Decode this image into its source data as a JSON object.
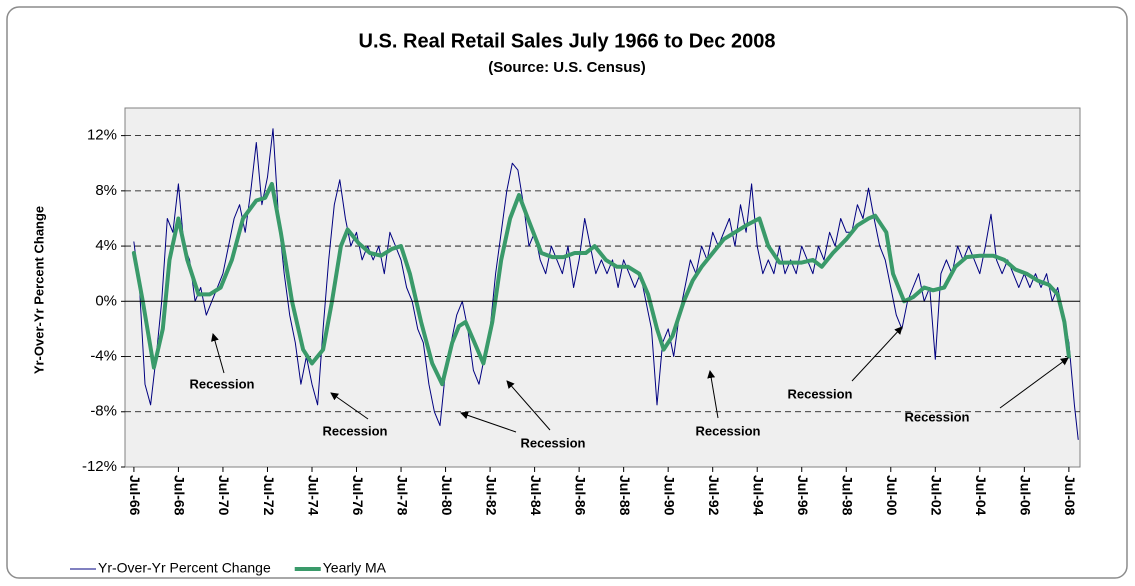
{
  "chart_data": {
    "type": "line",
    "title": "U.S. Real Retail Sales July 1966 to Dec 2008",
    "subtitle": "(Source: U.S. Census)",
    "y_label": "Yr-Over-Yr Percent Change",
    "xlim": [
      1966.1,
      2009.0
    ],
    "ylim": [
      -12,
      14
    ],
    "xticks": [
      {
        "value": 1966.5,
        "label": "Jul-66"
      },
      {
        "value": 1968.5,
        "label": "Jul-68"
      },
      {
        "value": 1970.5,
        "label": "Jul-70"
      },
      {
        "value": 1972.5,
        "label": "Jul-72"
      },
      {
        "value": 1974.5,
        "label": "Jul-74"
      },
      {
        "value": 1976.5,
        "label": "Jul-76"
      },
      {
        "value": 1978.5,
        "label": "Jul-78"
      },
      {
        "value": 1980.5,
        "label": "Jul-80"
      },
      {
        "value": 1982.5,
        "label": "Jul-82"
      },
      {
        "value": 1984.5,
        "label": "Jul-84"
      },
      {
        "value": 1986.5,
        "label": "Jul-86"
      },
      {
        "value": 1988.5,
        "label": "Jul-88"
      },
      {
        "value": 1990.5,
        "label": "Jul-90"
      },
      {
        "value": 1992.5,
        "label": "Jul-92"
      },
      {
        "value": 1994.5,
        "label": "Jul-94"
      },
      {
        "value": 1996.5,
        "label": "Jul-96"
      },
      {
        "value": 1998.5,
        "label": "Jul-98"
      },
      {
        "value": 2000.5,
        "label": "Jul-00"
      },
      {
        "value": 2002.5,
        "label": "Jul-02"
      },
      {
        "value": 2004.5,
        "label": "Jul-04"
      },
      {
        "value": 2006.5,
        "label": "Jul-06"
      },
      {
        "value": 2008.5,
        "label": "Jul-08"
      }
    ],
    "yticks": [
      {
        "value": -12,
        "label": "-12%"
      },
      {
        "value": -8,
        "label": "-8%"
      },
      {
        "value": -4,
        "label": "-4%"
      },
      {
        "value": 0,
        "label": "0%"
      },
      {
        "value": 4,
        "label": "4%"
      },
      {
        "value": 8,
        "label": "8%"
      },
      {
        "value": 12,
        "label": "12%"
      }
    ],
    "grid": true,
    "legend": "bottom",
    "annotations": [
      "Recession",
      "Recession",
      "Recession",
      "Recession",
      "Recession",
      "Recession"
    ],
    "series": [
      {
        "name": "Yr-Over-Yr Percent Change",
        "color": "#000080",
        "width": 1,
        "x": [
          1966.5,
          1966.75,
          1967,
          1967.25,
          1967.5,
          1967.75,
          1968,
          1968.25,
          1968.5,
          1968.75,
          1969,
          1969.25,
          1969.5,
          1969.75,
          1970,
          1970.25,
          1970.5,
          1970.75,
          1971,
          1971.25,
          1971.5,
          1971.75,
          1972,
          1972.25,
          1972.5,
          1972.75,
          1973,
          1973.25,
          1973.5,
          1973.75,
          1974,
          1974.25,
          1974.5,
          1974.75,
          1975,
          1975.25,
          1975.5,
          1975.75,
          1976,
          1976.25,
          1976.5,
          1976.75,
          1977,
          1977.25,
          1977.5,
          1977.75,
          1978,
          1978.25,
          1978.5,
          1978.75,
          1979,
          1979.25,
          1979.5,
          1979.75,
          1980,
          1980.25,
          1980.5,
          1980.75,
          1981,
          1981.25,
          1981.5,
          1981.75,
          1982,
          1982.25,
          1982.5,
          1982.75,
          1983,
          1983.25,
          1983.5,
          1983.75,
          1984,
          1984.25,
          1984.5,
          1984.75,
          1985,
          1985.25,
          1985.5,
          1985.75,
          1986,
          1986.25,
          1986.5,
          1986.75,
          1987,
          1987.25,
          1987.5,
          1987.75,
          1988,
          1988.25,
          1988.5,
          1988.75,
          1989,
          1989.25,
          1989.5,
          1989.75,
          1990,
          1990.25,
          1990.5,
          1990.75,
          1991,
          1991.25,
          1991.5,
          1991.75,
          1992,
          1992.25,
          1992.5,
          1992.75,
          1993,
          1993.25,
          1993.5,
          1993.75,
          1994,
          1994.25,
          1994.5,
          1994.75,
          1995,
          1995.25,
          1995.5,
          1995.75,
          1996,
          1996.25,
          1996.5,
          1996.75,
          1997,
          1997.25,
          1997.5,
          1997.75,
          1998,
          1998.25,
          1998.5,
          1998.75,
          1999,
          1999.25,
          1999.5,
          1999.75,
          2000,
          2000.25,
          2000.5,
          2000.75,
          2001,
          2001.25,
          2001.5,
          2001.75,
          2002,
          2002.25,
          2002.5,
          2002.75,
          2003,
          2003.25,
          2003.5,
          2003.75,
          2004,
          2004.25,
          2004.5,
          2004.75,
          2005,
          2005.25,
          2005.5,
          2005.75,
          2006,
          2006.25,
          2006.5,
          2006.75,
          2007,
          2007.25,
          2007.5,
          2007.75,
          2008,
          2008.25,
          2008.5,
          2008.75,
          2008.917
        ],
        "values": [
          4.3,
          1,
          -6,
          -7.5,
          -4,
          0,
          6,
          5,
          8.5,
          4,
          3,
          0,
          1,
          -1,
          0,
          1,
          2,
          4,
          6,
          7,
          5,
          8,
          11.5,
          7,
          9,
          12.5,
          6,
          2,
          -1,
          -3,
          -6,
          -4,
          -6,
          -7.5,
          -2,
          3,
          7,
          8.8,
          6,
          4,
          5,
          3,
          4,
          3,
          4,
          2,
          5,
          4,
          3,
          1,
          0,
          -2,
          -3,
          -6,
          -8,
          -9,
          -5,
          -3,
          -1,
          0,
          -2,
          -5,
          -6,
          -4,
          -2,
          2,
          5,
          8,
          10,
          9.5,
          7,
          4,
          5,
          3,
          2,
          4,
          3,
          2,
          4,
          1,
          3,
          6,
          4,
          2,
          3,
          2,
          3,
          1,
          3,
          2,
          1,
          2,
          0,
          -2,
          -7.5,
          -3,
          -2,
          -4,
          -1,
          1,
          3,
          2,
          4,
          3,
          5,
          4,
          5,
          6,
          4,
          7,
          5,
          8.5,
          4,
          2,
          3,
          2,
          4,
          2,
          3,
          2,
          4,
          3,
          2,
          4,
          3,
          5,
          4,
          6,
          5,
          5,
          7,
          6,
          8.2,
          6,
          4,
          3,
          1,
          -1,
          -2,
          0,
          1,
          2,
          0,
          1,
          -4.2,
          2,
          3,
          2,
          4,
          3,
          4,
          3,
          2,
          4,
          6.3,
          3,
          2,
          3,
          2,
          1,
          2,
          1,
          2,
          1,
          2,
          0,
          1,
          -1,
          -3,
          -7.5,
          -10
        ]
      },
      {
        "name": "Yearly MA",
        "color": "#3a9a6a",
        "width": 4,
        "x": [
          1966.5,
          1966.9,
          1967.4,
          1967.8,
          1968.1,
          1968.5,
          1968.9,
          1969.4,
          1969.9,
          1970.4,
          1970.9,
          1971.4,
          1972.0,
          1972.4,
          1972.7,
          1973.1,
          1973.6,
          1974.1,
          1974.5,
          1975.0,
          1975.4,
          1975.8,
          1976.1,
          1976.6,
          1977.1,
          1977.6,
          1978.1,
          1978.5,
          1978.9,
          1979.4,
          1979.9,
          1980.35,
          1980.8,
          1981.1,
          1981.4,
          1981.8,
          1982.2,
          1982.6,
          1983.0,
          1983.4,
          1983.8,
          1984.2,
          1984.8,
          1985.3,
          1985.8,
          1986.3,
          1986.8,
          1987.2,
          1987.7,
          1988.2,
          1988.7,
          1989.2,
          1989.6,
          1990.0,
          1990.3,
          1990.7,
          1991.2,
          1991.6,
          1992.0,
          1992.5,
          1993.0,
          1993.5,
          1994.0,
          1994.6,
          1995.0,
          1995.5,
          1996.0,
          1996.5,
          1997.0,
          1997.4,
          1997.9,
          1998.5,
          1999.0,
          1999.5,
          1999.8,
          2000.3,
          2000.6,
          2001.1,
          2001.5,
          2002.0,
          2002.4,
          2002.9,
          2003.4,
          2003.9,
          2004.5,
          2005.1,
          2005.6,
          2006.1,
          2006.6,
          2007.1,
          2007.6,
          2008.0,
          2008.3,
          2008.5
        ],
        "values": [
          3.5,
          0,
          -4.8,
          -2,
          3,
          6,
          3,
          0.5,
          0.5,
          1,
          3,
          6,
          7.3,
          7.5,
          8.5,
          5,
          0,
          -3.5,
          -4.5,
          -3.5,
          0,
          4,
          5.2,
          4.2,
          3.5,
          3.3,
          3.8,
          4,
          2,
          -1.5,
          -4.5,
          -6,
          -3,
          -1.8,
          -1.5,
          -3,
          -4.5,
          -1.5,
          3,
          6,
          7.7,
          6,
          3.5,
          3.2,
          3.2,
          3.5,
          3.5,
          4,
          3,
          2.5,
          2.5,
          2,
          0.5,
          -2,
          -3.5,
          -2.5,
          0,
          1.5,
          2.5,
          3.5,
          4.5,
          5,
          5.5,
          6,
          4,
          2.8,
          2.8,
          2.8,
          3,
          2.5,
          3.5,
          4.5,
          5.5,
          6,
          6.2,
          5,
          2,
          0,
          0.3,
          1,
          0.8,
          1,
          2.5,
          3.2,
          3.3,
          3.3,
          3,
          2.3,
          2,
          1.5,
          1.2,
          0.5,
          -1.5,
          -4
        ]
      }
    ]
  }
}
